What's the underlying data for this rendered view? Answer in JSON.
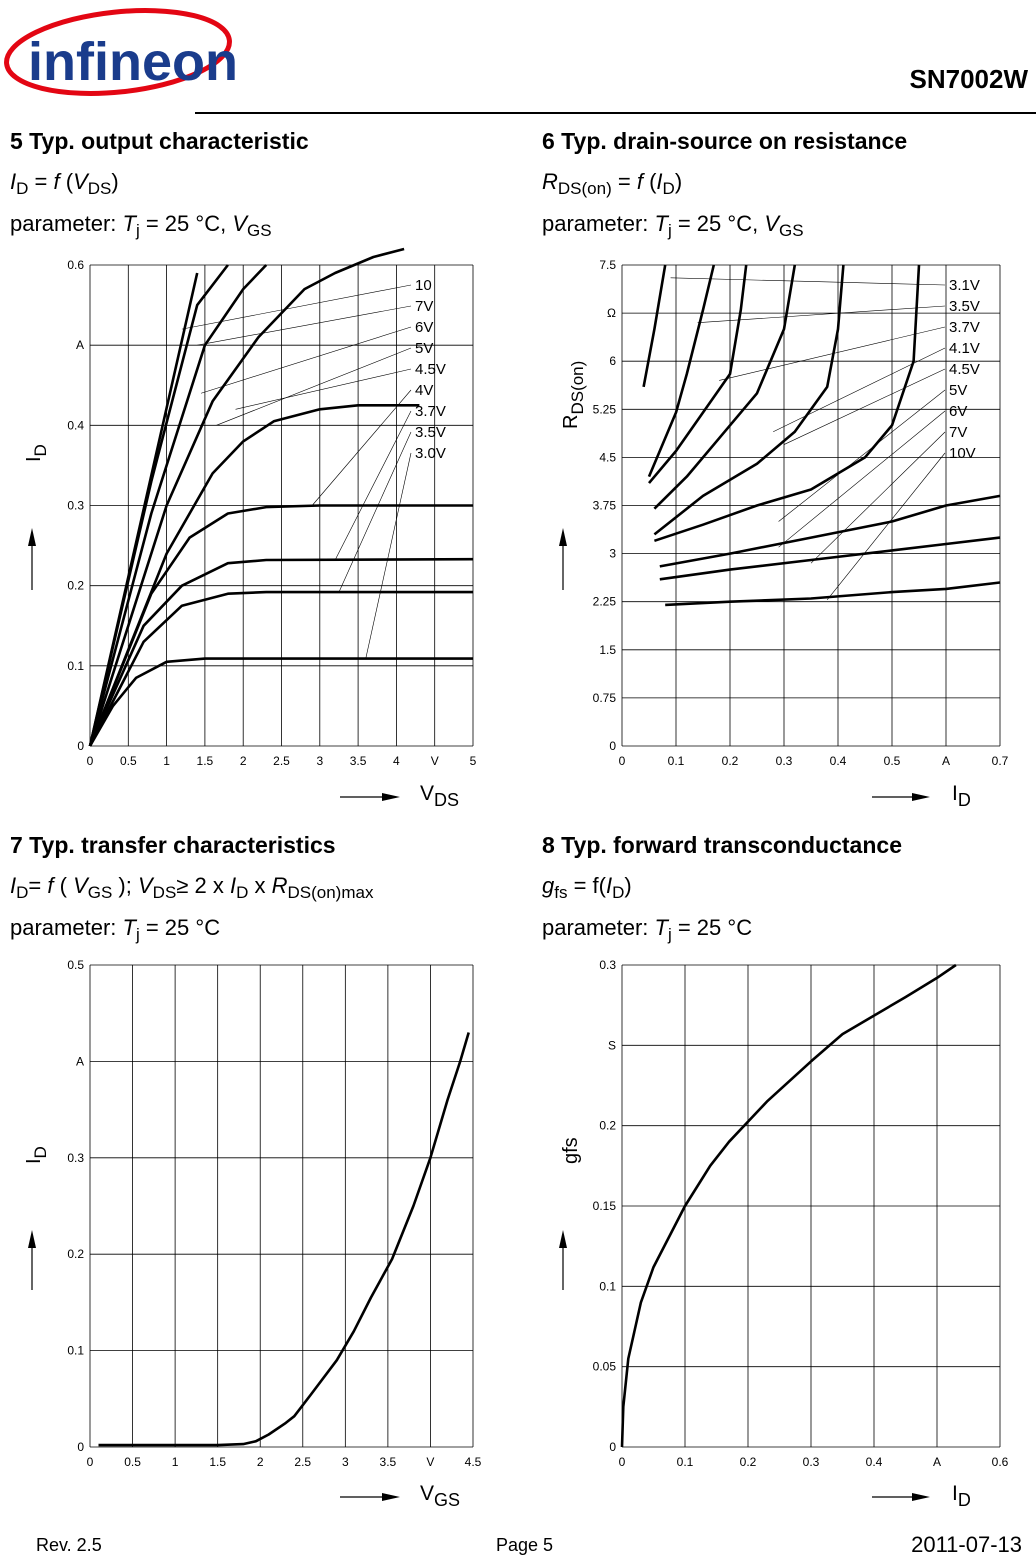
{
  "header": {
    "logo_text": "infineon",
    "part_number": "SN7002W"
  },
  "sections": {
    "s5": {
      "title": "5 Typ. output characteristic",
      "formula": {
        "a": "I",
        "a_sub": "D",
        "mid": " = ",
        "f": "f",
        "open": " (",
        "b": "V",
        "b_sub": "DS",
        "close": ")"
      },
      "param": {
        "prefix": "parameter: ",
        "t": "T",
        "t_sub": "j",
        "val": " = 25 °C, ",
        "v": "V",
        "v_sub": "GS"
      }
    },
    "s6": {
      "title": "6 Typ. drain-source on resistance",
      "formula": {
        "a": "R",
        "a_sub": "DS(on)",
        "mid": " = ",
        "f": "f",
        "open": " (",
        "b": "I",
        "b_sub": "D",
        "close": ")"
      },
      "param": {
        "prefix": "parameter: ",
        "t": "T",
        "t_sub": "j",
        "val": " = 25 °C, ",
        "v": "V",
        "v_sub": "GS"
      }
    },
    "s7": {
      "title": "7 Typ. transfer characteristics",
      "formula": {
        "a": "I",
        "a_sub": "D",
        "eq": "= ",
        "f": "f",
        "o": " ( ",
        "b": "V",
        "b_sub": "GS",
        "c": " ); ",
        "d": "V",
        "d_sub": "DS",
        "e": "≥ 2 x ",
        "g": "I",
        "g_sub": "D",
        "h": " x ",
        "k": "R",
        "k_sub": "DS(on)max"
      },
      "param": {
        "prefix": "parameter: ",
        "t": "T",
        "t_sub": "j",
        "val": " = 25 °C"
      }
    },
    "s8": {
      "title": "8 Typ. forward transconductance",
      "formula": {
        "a": "g",
        "a_sub": "fs",
        "mid": " = f(",
        "b": "I",
        "b_sub": "D",
        "close": ")"
      },
      "param": {
        "prefix": "parameter: ",
        "t": "T",
        "t_sub": "j",
        "val": " = 25 °C"
      }
    }
  },
  "footer": {
    "rev": "Rev. 2.5",
    "page": "Page 5",
    "date": "2011-07-13"
  },
  "chart_data": [
    {
      "type": "line",
      "xlabel": "V",
      "xlabel_sub": "DS",
      "ylabel": "I",
      "ylabel_sub": "D",
      "xunit": "V",
      "yunit": "A",
      "xlim": [
        0,
        5
      ],
      "ylim": [
        0,
        0.6
      ],
      "xticks": [
        "0",
        "0.5",
        "1",
        "1.5",
        "2",
        "2.5",
        "3",
        "3.5",
        "4",
        "V",
        "5"
      ],
      "yticks": [
        "0",
        "0.1",
        "0.2",
        "0.3",
        "0.4",
        "A",
        "0.6"
      ],
      "legend": [
        "10",
        "7V",
        "6V",
        "5V",
        "4.5V",
        "4V",
        "3.7V",
        "3.5V",
        "3.0V"
      ],
      "series": [
        {
          "name": "10",
          "points": [
            [
              0,
              0
            ],
            [
              1.4,
              0.59
            ]
          ]
        },
        {
          "name": "7V",
          "points": [
            [
              0,
              0
            ],
            [
              0.8,
              0.33
            ],
            [
              1.4,
              0.55
            ],
            [
              1.8,
              0.6
            ]
          ]
        },
        {
          "name": "6V",
          "points": [
            [
              0,
              0
            ],
            [
              0.8,
              0.29
            ],
            [
              1.5,
              0.5
            ],
            [
              2.0,
              0.57
            ],
            [
              2.3,
              0.6
            ]
          ]
        },
        {
          "name": "5V",
          "points": [
            [
              0,
              0
            ],
            [
              1.0,
              0.3
            ],
            [
              1.6,
              0.43
            ],
            [
              2.2,
              0.51
            ],
            [
              2.8,
              0.57
            ],
            [
              3.2,
              0.59
            ],
            [
              3.7,
              0.61
            ],
            [
              4.1,
              0.62
            ]
          ]
        },
        {
          "name": "4.5V",
          "points": [
            [
              0,
              0
            ],
            [
              1.0,
              0.24
            ],
            [
              1.6,
              0.34
            ],
            [
              2.0,
              0.38
            ],
            [
              2.4,
              0.405
            ],
            [
              3.0,
              0.42
            ],
            [
              3.5,
              0.425
            ],
            [
              4.3,
              0.425
            ]
          ]
        },
        {
          "name": "4V",
          "points": [
            [
              0,
              0
            ],
            [
              0.8,
              0.19
            ],
            [
              1.3,
              0.26
            ],
            [
              1.8,
              0.29
            ],
            [
              2.3,
              0.298
            ],
            [
              3.0,
              0.3
            ],
            [
              5,
              0.3
            ]
          ]
        },
        {
          "name": "3.7V",
          "points": [
            [
              0,
              0
            ],
            [
              0.7,
              0.15
            ],
            [
              1.2,
              0.2
            ],
            [
              1.8,
              0.228
            ],
            [
              2.3,
              0.232
            ],
            [
              5,
              0.233
            ]
          ]
        },
        {
          "name": "3.5V",
          "points": [
            [
              0,
              0
            ],
            [
              0.7,
              0.13
            ],
            [
              1.2,
              0.175
            ],
            [
              1.8,
              0.19
            ],
            [
              2.3,
              0.192
            ],
            [
              5,
              0.192
            ]
          ]
        },
        {
          "name": "3.0V",
          "points": [
            [
              0,
              0
            ],
            [
              0.3,
              0.05
            ],
            [
              0.6,
              0.085
            ],
            [
              1.0,
              0.105
            ],
            [
              1.5,
              0.109
            ],
            [
              5,
              0.109
            ]
          ]
        }
      ]
    },
    {
      "type": "line",
      "xlabel": "I",
      "xlabel_sub": "D",
      "ylabel": "R",
      "ylabel_sub": "DS(on)",
      "xunit": "A",
      "yunit": "Ω",
      "xlim": [
        0,
        0.7
      ],
      "ylim": [
        0,
        7.5
      ],
      "xticks": [
        "0",
        "0.1",
        "0.2",
        "0.3",
        "0.4",
        "0.5",
        "A",
        "0.7"
      ],
      "yticks": [
        "0",
        "0.75",
        "1.5",
        "2.25",
        "3",
        "3.75",
        "4.5",
        "5.25",
        "6",
        "Ω",
        "7.5"
      ],
      "legend": [
        "3.1V",
        "3.5V",
        "3.7V",
        "4.1V",
        "4.5V",
        "5V",
        "6V",
        "7V",
        "10V"
      ],
      "series": [
        {
          "name": "3.1V",
          "points": [
            [
              0.04,
              5.6
            ],
            [
              0.06,
              6.5
            ],
            [
              0.08,
              7.5
            ]
          ]
        },
        {
          "name": "3.5V",
          "points": [
            [
              0.05,
              4.2
            ],
            [
              0.1,
              5.2
            ],
            [
              0.12,
              5.8
            ],
            [
              0.15,
              6.8
            ],
            [
              0.17,
              7.5
            ]
          ]
        },
        {
          "name": "3.7V",
          "points": [
            [
              0.05,
              4.1
            ],
            [
              0.1,
              4.6
            ],
            [
              0.15,
              5.2
            ],
            [
              0.2,
              5.8
            ],
            [
              0.22,
              6.8
            ],
            [
              0.23,
              7.5
            ]
          ]
        },
        {
          "name": "4.1V",
          "points": [
            [
              0.06,
              3.7
            ],
            [
              0.12,
              4.2
            ],
            [
              0.18,
              4.8
            ],
            [
              0.25,
              5.5
            ],
            [
              0.3,
              6.5
            ],
            [
              0.32,
              7.5
            ]
          ]
        },
        {
          "name": "4.5V",
          "points": [
            [
              0.06,
              3.3
            ],
            [
              0.15,
              3.9
            ],
            [
              0.25,
              4.4
            ],
            [
              0.32,
              4.9
            ],
            [
              0.38,
              5.6
            ],
            [
              0.4,
              6.5
            ],
            [
              0.41,
              7.5
            ]
          ]
        },
        {
          "name": "5V",
          "points": [
            [
              0.06,
              3.2
            ],
            [
              0.15,
              3.45
            ],
            [
              0.25,
              3.75
            ],
            [
              0.35,
              4.0
            ],
            [
              0.45,
              4.5
            ],
            [
              0.5,
              5.0
            ],
            [
              0.54,
              6.0
            ],
            [
              0.55,
              7.5
            ]
          ]
        },
        {
          "name": "6V",
          "points": [
            [
              0.07,
              2.8
            ],
            [
              0.2,
              3.0
            ],
            [
              0.35,
              3.25
            ],
            [
              0.5,
              3.5
            ],
            [
              0.6,
              3.75
            ],
            [
              0.7,
              3.9
            ]
          ]
        },
        {
          "name": "7V",
          "points": [
            [
              0.07,
              2.6
            ],
            [
              0.2,
              2.75
            ],
            [
              0.35,
              2.9
            ],
            [
              0.5,
              3.05
            ],
            [
              0.6,
              3.15
            ],
            [
              0.7,
              3.25
            ]
          ]
        },
        {
          "name": "10V",
          "points": [
            [
              0.08,
              2.2
            ],
            [
              0.2,
              2.25
            ],
            [
              0.35,
              2.3
            ],
            [
              0.5,
              2.4
            ],
            [
              0.6,
              2.45
            ],
            [
              0.7,
              2.55
            ]
          ]
        }
      ]
    },
    {
      "type": "line",
      "xlabel": "V",
      "xlabel_sub": "GS",
      "ylabel": "I",
      "ylabel_sub": "D",
      "xunit": "V",
      "yunit": "A",
      "xlim": [
        0,
        4.5
      ],
      "ylim": [
        0,
        0.5
      ],
      "xticks": [
        "0",
        "0.5",
        "1",
        "1.5",
        "2",
        "2.5",
        "3",
        "3.5",
        "V",
        "4.5"
      ],
      "yticks": [
        "0",
        "0.1",
        "0.2",
        "0.3",
        "A",
        "0.5"
      ],
      "series": [
        {
          "name": "ID",
          "points": [
            [
              0.1,
              0.002
            ],
            [
              1.5,
              0.002
            ],
            [
              1.8,
              0.003
            ],
            [
              1.95,
              0.006
            ],
            [
              2.1,
              0.013
            ],
            [
              2.3,
              0.025
            ],
            [
              2.4,
              0.032
            ],
            [
              2.6,
              0.055
            ],
            [
              2.9,
              0.09
            ],
            [
              3.1,
              0.12
            ],
            [
              3.3,
              0.155
            ],
            [
              3.55,
              0.195
            ],
            [
              3.8,
              0.25
            ],
            [
              4.0,
              0.3
            ],
            [
              4.2,
              0.36
            ],
            [
              4.35,
              0.4
            ],
            [
              4.45,
              0.43
            ]
          ]
        }
      ]
    },
    {
      "type": "line",
      "xlabel": "I",
      "xlabel_sub": "D",
      "ylabel": "gfs",
      "ylabel_sub": "",
      "xunit": "A",
      "yunit": "S",
      "xlim": [
        0,
        0.6
      ],
      "ylim": [
        0,
        0.3
      ],
      "xticks": [
        "0",
        "0.1",
        "0.2",
        "0.3",
        "0.4",
        "A",
        "0.6"
      ],
      "yticks": [
        "0",
        "0.05",
        "0.1",
        "0.15",
        "0.2",
        "S",
        "0.3"
      ],
      "series": [
        {
          "name": "gfs",
          "points": [
            [
              0,
              0
            ],
            [
              0.002,
              0.025
            ],
            [
              0.01,
              0.055
            ],
            [
              0.03,
              0.09
            ],
            [
              0.05,
              0.112
            ],
            [
              0.1,
              0.15
            ],
            [
              0.14,
              0.175
            ],
            [
              0.17,
              0.19
            ],
            [
              0.23,
              0.215
            ],
            [
              0.3,
              0.24
            ],
            [
              0.35,
              0.257
            ],
            [
              0.45,
              0.28
            ],
            [
              0.5,
              0.292
            ],
            [
              0.53,
              0.3
            ]
          ]
        }
      ]
    }
  ]
}
